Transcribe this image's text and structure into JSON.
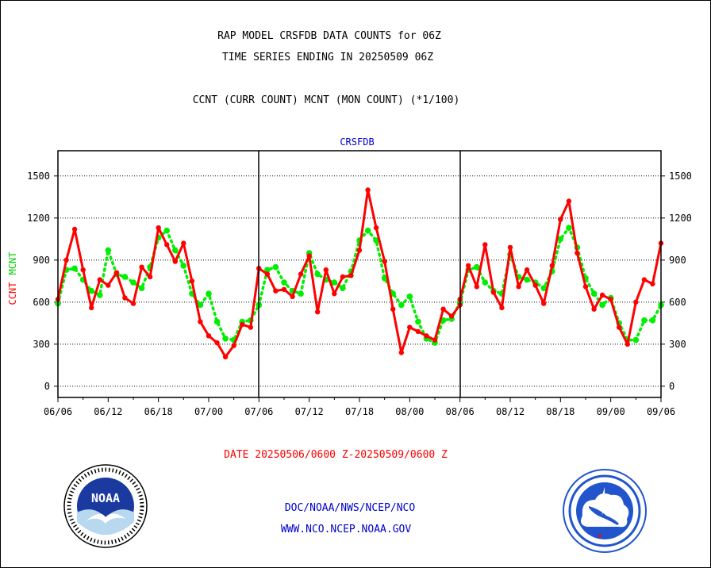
{
  "title_line1": "RAP MODEL CRSFDB DATA COUNTS for 06Z",
  "title_line2": "TIME SERIES ENDING IN 20250509 06Z",
  "subtitle": "CCNT (CURR COUNT) MCNT (MON COUNT) (*1/100)",
  "panel_label": "CRSFDB",
  "ylabel_ccnt": "CCNT",
  "ylabel_mcnt": "MCNT",
  "date_range": "DATE 20250506/0600 Z-20250509/0600 Z",
  "footer_line1": "DOC/NOAA/NWS/NCEP/NCO",
  "footer_line2": "WWW.NCO.NCEP.NOAA.GOV",
  "colors": {
    "ccnt": "#ff0000",
    "mcnt": "#00ee00",
    "footer": "#0000cc",
    "panel_label": "#0000cc"
  },
  "logos": {
    "left": "noaa-logo",
    "right": "nws-logo"
  },
  "chart_data": {
    "type": "line",
    "ylim": [
      -80,
      1680
    ],
    "yticks": [
      0,
      300,
      600,
      900,
      1200,
      1500
    ],
    "grid": "dotted horizontal",
    "panels": 3,
    "xtick_labels": [
      "06/06",
      "06/12",
      "06/18",
      "07/00",
      "07/06",
      "07/12",
      "07/18",
      "08/00",
      "08/06",
      "08/12",
      "08/18",
      "09/00",
      "09/06"
    ],
    "series": [
      {
        "name": "CCNT",
        "panels": [
          [
            620,
            900,
            1120,
            830,
            560,
            760,
            720,
            810,
            630,
            590,
            850,
            780,
            1130,
            1010,
            890,
            1020,
            750,
            460,
            360,
            310,
            210,
            290,
            440,
            420,
            840
          ],
          [
            840,
            800,
            680,
            690,
            640,
            800,
            930,
            530,
            830,
            660,
            780,
            790,
            970,
            1400,
            1130,
            890,
            550,
            240,
            420,
            390,
            360,
            330,
            550,
            500,
            580
          ],
          [
            620,
            860,
            710,
            1010,
            670,
            560,
            990,
            710,
            830,
            720,
            590,
            860,
            1190,
            1320,
            950,
            710,
            550,
            650,
            620,
            420,
            300,
            600,
            760,
            730,
            1020
          ]
        ]
      },
      {
        "name": "MCNT",
        "panels": [
          [
            590,
            830,
            840,
            760,
            680,
            650,
            970,
            800,
            780,
            740,
            700,
            850,
            1060,
            1110,
            970,
            860,
            660,
            580,
            660,
            460,
            340,
            330,
            460,
            470,
            580
          ],
          [
            580,
            830,
            850,
            740,
            680,
            660,
            950,
            800,
            760,
            740,
            700,
            820,
            1040,
            1110,
            1040,
            770,
            660,
            580,
            640,
            460,
            340,
            310,
            470,
            480,
            600
          ],
          [
            590,
            830,
            850,
            740,
            680,
            660,
            940,
            780,
            760,
            740,
            700,
            820,
            1050,
            1130,
            990,
            770,
            660,
            580,
            630,
            450,
            330,
            330,
            470,
            470,
            580
          ]
        ]
      }
    ]
  }
}
